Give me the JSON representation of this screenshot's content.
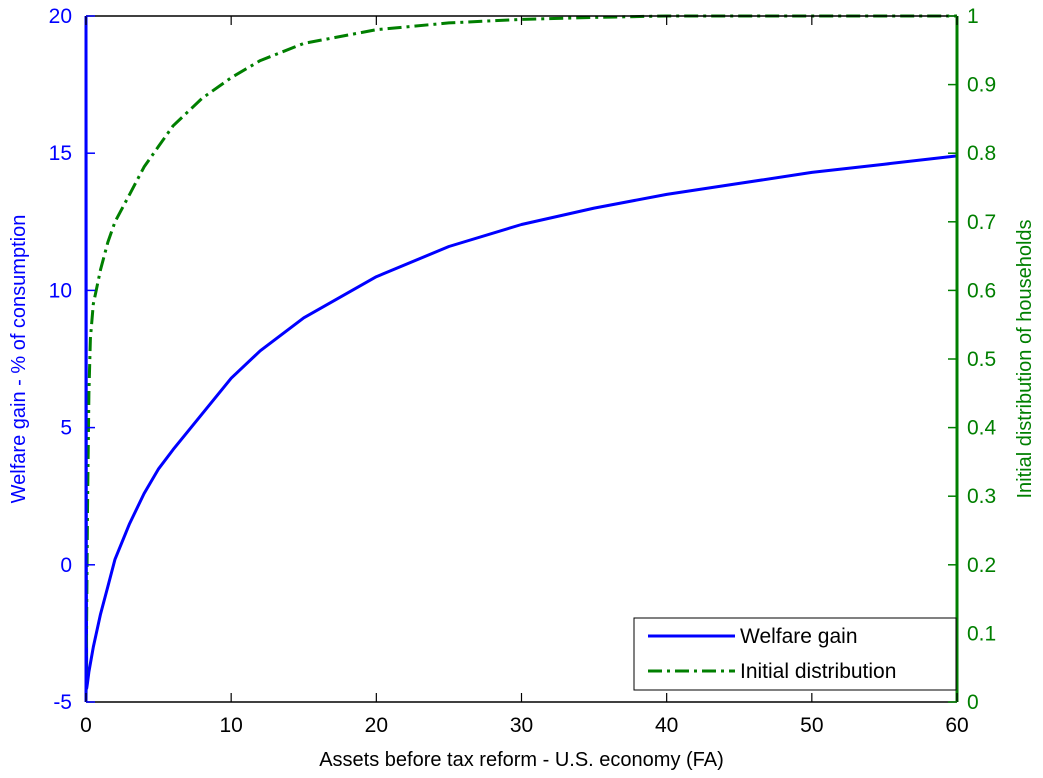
{
  "chart_data": {
    "type": "line",
    "title": "",
    "xlabel": "Assets before tax reform - U.S. economy (FA)",
    "ylabel_left": "Welfare gain - % of consumption",
    "ylabel_right": "Initial distribution of households",
    "xlim": [
      0,
      60
    ],
    "ylim_left": [
      -5,
      20
    ],
    "ylim_right": [
      0,
      1
    ],
    "x_ticks": [
      "0",
      "10",
      "20",
      "30",
      "40",
      "50",
      "60"
    ],
    "y_left_ticks": [
      "-5",
      "0",
      "5",
      "10",
      "15",
      "20"
    ],
    "y_right_ticks": [
      "0",
      "0.1",
      "0.2",
      "0.3",
      "0.4",
      "0.5",
      "0.6",
      "0.7",
      "0.8",
      "0.9",
      "1"
    ],
    "grid": false,
    "legend_position": "bottom-right",
    "colors": {
      "welfare": "#0000ff",
      "distribution": "#007f00",
      "axes": "#000000"
    },
    "series": [
      {
        "name": "Welfare gain",
        "axis": "left",
        "style": "solid",
        "x": [
          0,
          0.02,
          0.05,
          0.1,
          0.2,
          0.5,
          1,
          1.5,
          2,
          3,
          4,
          5,
          6,
          8,
          10,
          12,
          15,
          20,
          25,
          30,
          35,
          40,
          45,
          50,
          55,
          60
        ],
        "y": [
          20,
          0,
          -4.5,
          -4.3,
          -3.9,
          -3.0,
          -1.8,
          -0.8,
          0.2,
          1.5,
          2.6,
          3.5,
          4.2,
          5.5,
          6.8,
          7.8,
          9.0,
          10.5,
          11.6,
          12.4,
          13.0,
          13.5,
          13.9,
          14.3,
          14.6,
          14.9
        ]
      },
      {
        "name": "Initial distribution",
        "axis": "right",
        "style": "dashdot",
        "x": [
          0,
          0.1,
          0.2,
          0.3,
          0.5,
          0.7,
          1,
          1.5,
          2,
          3,
          4,
          5,
          6,
          8,
          10,
          12,
          15,
          20,
          25,
          30,
          35,
          40,
          50,
          60
        ],
        "y": [
          0,
          0.28,
          0.45,
          0.53,
          0.58,
          0.6,
          0.63,
          0.67,
          0.7,
          0.74,
          0.78,
          0.81,
          0.84,
          0.88,
          0.91,
          0.935,
          0.96,
          0.98,
          0.99,
          0.995,
          0.998,
          1.0,
          1.0,
          1.0
        ]
      }
    ]
  }
}
